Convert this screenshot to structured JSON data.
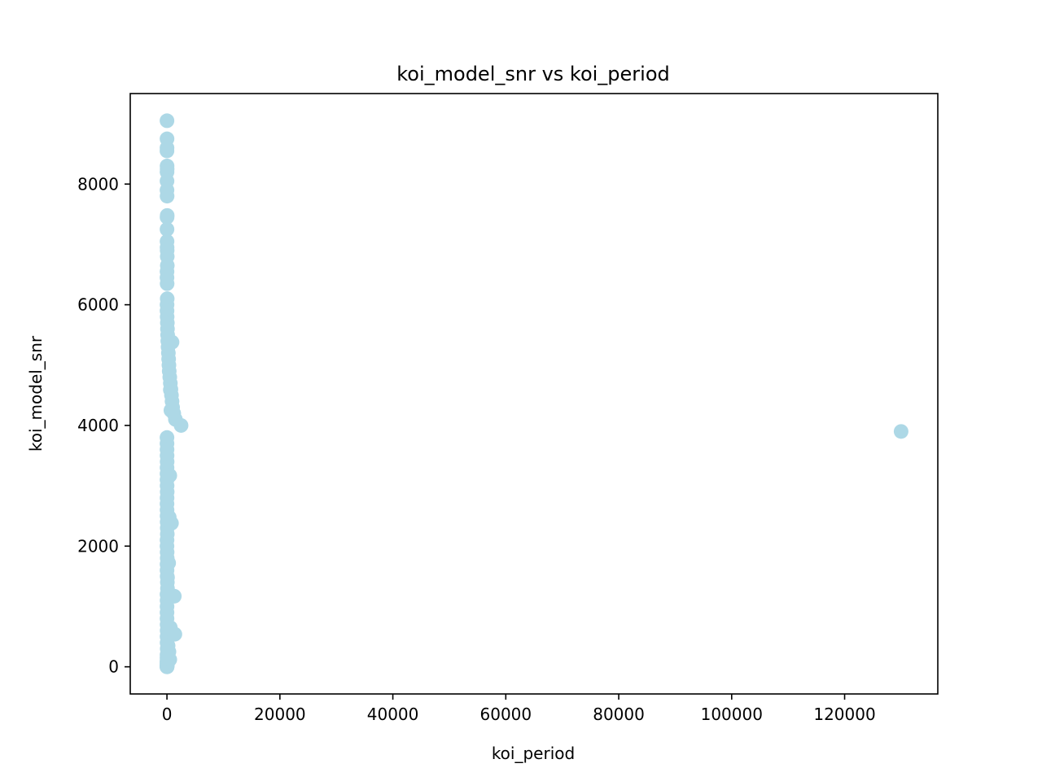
{
  "chart_data": {
    "type": "scatter",
    "title": "koi_model_snr vs koi_period",
    "xlabel": "koi_period",
    "ylabel": "koi_model_snr",
    "xlim": [
      -6500,
      136500
    ],
    "ylim": [
      -450,
      9500
    ],
    "xticks": [
      0,
      20000,
      40000,
      60000,
      80000,
      100000,
      120000
    ],
    "yticks": [
      0,
      2000,
      4000,
      6000,
      8000
    ],
    "grid": false,
    "legend": "none",
    "marker_color": "#add8e6",
    "series": [
      {
        "x": [
          5,
          12,
          8,
          3,
          20,
          30,
          15,
          10,
          6,
          25,
          40,
          18,
          9,
          14,
          22,
          35,
          50,
          60,
          11,
          7,
          28,
          45,
          16,
          13,
          33,
          70,
          90,
          120,
          150,
          200,
          250,
          300,
          350,
          400,
          500,
          600,
          700,
          800,
          900,
          1000,
          1200,
          1500,
          2500,
          130000,
          5,
          8,
          12,
          20,
          30,
          15,
          10,
          6,
          25,
          40,
          18,
          9,
          14,
          22,
          35,
          50,
          60,
          11,
          7,
          28,
          45,
          16,
          13,
          33,
          70,
          90,
          10,
          20,
          15,
          8,
          12,
          25,
          30,
          18,
          22,
          40,
          14,
          9,
          11,
          16,
          6,
          20,
          35,
          12,
          28,
          10,
          5,
          7,
          15,
          18,
          900,
          600,
          700,
          500,
          400,
          800,
          300,
          1300,
          1400,
          200,
          600,
          200,
          100,
          350,
          500
        ],
        "y": [
          9050,
          8750,
          8600,
          8550,
          8300,
          8250,
          8200,
          8050,
          7900,
          7800,
          7480,
          7450,
          7250,
          7050,
          6950,
          6900,
          6800,
          6650,
          6550,
          6450,
          6350,
          6100,
          6000,
          5900,
          5800,
          5700,
          5600,
          5500,
          5400,
          5300,
          5200,
          5100,
          5000,
          4900,
          4800,
          4700,
          4600,
          4500,
          4400,
          4300,
          4200,
          4100,
          4000,
          3900,
          3800,
          3700,
          3600,
          3500,
          3400,
          3300,
          3200,
          3100,
          3000,
          2900,
          2800,
          2700,
          2600,
          2500,
          2400,
          2300,
          2200,
          2100,
          2000,
          1900,
          1800,
          1700,
          1600,
          1500,
          1400,
          1300,
          1200,
          1100,
          1000,
          900,
          800,
          700,
          600,
          500,
          400,
          300,
          200,
          150,
          100,
          80,
          60,
          40,
          30,
          20,
          10,
          5,
          0,
          0,
          0,
          0,
          5380,
          4590,
          4250,
          3170,
          2480,
          2380,
          1720,
          1170,
          540,
          90,
          650,
          350,
          1480,
          250,
          120
        ]
      }
    ]
  }
}
